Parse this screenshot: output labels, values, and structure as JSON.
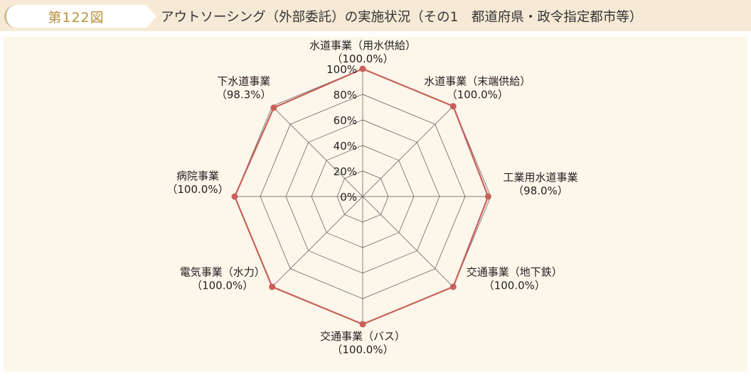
{
  "header": {
    "figure_number": "第122図",
    "title": "アウトソーシング（外部委託）の実施状況（その1　都道府県・政令指定都市等）"
  },
  "colors": {
    "header_bg": "#f6ead6",
    "panel_bg": "#fdf6ea",
    "figure_number_text": "#b8913a",
    "series_line": "#c8605a",
    "grid_line": "#555555"
  },
  "chart_data": {
    "type": "radar",
    "title": "",
    "categories": [
      "水道事業（用水供給）",
      "水道事業（末端供給）",
      "工業用水道事業",
      "交通事業（地下鉄）",
      "交通事業（バス）",
      "電気事業（水力）",
      "病院事業",
      "下水道事業"
    ],
    "value_labels": [
      "（100.0%）",
      "（100.0%）",
      "（98.0%）",
      "（100.0%）",
      "（100.0%）",
      "（100.0%）",
      "（100.0%）",
      "（98.3%）"
    ],
    "series": [
      {
        "values": [
          100.0,
          100.0,
          98.0,
          100.0,
          100.0,
          100.0,
          100.0,
          98.3
        ]
      }
    ],
    "axis": {
      "range": [
        0,
        100
      ],
      "ticks": [
        0,
        20,
        40,
        60,
        80,
        100
      ],
      "tick_labels": [
        "0%",
        "20%",
        "40%",
        "60%",
        "80%",
        "100%"
      ]
    },
    "grid": true,
    "legend": "none"
  }
}
